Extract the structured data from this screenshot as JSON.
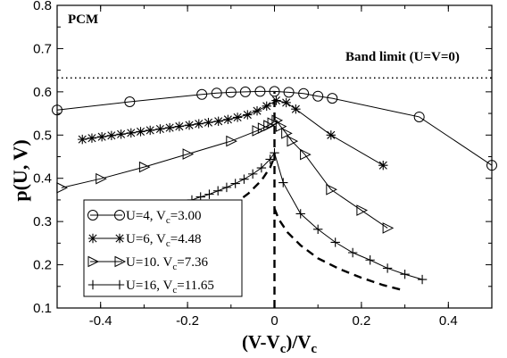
{
  "chart_data": {
    "type": "line",
    "panel_label": "PCM",
    "xlabel": "(V-V",
    "xlabel_sub": "c",
    "xlabel_tail": ")/V",
    "xlabel_sub2": "c",
    "ylabel": "p(U, V)",
    "xlim": [
      -0.5,
      0.5
    ],
    "ylim": [
      0.1,
      0.8
    ],
    "x_ticks": [
      {
        "v": -0.4,
        "label": "-0.4"
      },
      {
        "v": -0.2,
        "label": "-0.2"
      },
      {
        "v": 0.0,
        "label": "0"
      },
      {
        "v": 0.2,
        "label": "0.2"
      },
      {
        "v": 0.4,
        "label": "0.4"
      }
    ],
    "y_ticks": [
      {
        "v": 0.1,
        "label": "0.1"
      },
      {
        "v": 0.2,
        "label": "0.2"
      },
      {
        "v": 0.3,
        "label": "0.3"
      },
      {
        "v": 0.4,
        "label": "0.4"
      },
      {
        "v": 0.5,
        "label": "0.5"
      },
      {
        "v": 0.6,
        "label": "0.6"
      },
      {
        "v": 0.7,
        "label": "0.7"
      },
      {
        "v": 0.8,
        "label": "0.8"
      }
    ],
    "band_limit": {
      "y": 0.632,
      "label": "Band limit (U=V=0)"
    },
    "grid": false,
    "legend_position": "bottom-left",
    "series": [
      {
        "name": "U=4, V",
        "name_sub": "c",
        "name_tail": "=3.00",
        "marker": "circle",
        "x": [
          -0.5,
          -0.333,
          -0.167,
          -0.133,
          -0.1,
          -0.067,
          -0.033,
          0.0,
          0.033,
          0.067,
          0.1,
          0.133,
          0.333,
          0.5
        ],
        "y": [
          0.558,
          0.577,
          0.594,
          0.597,
          0.599,
          0.6,
          0.601,
          0.601,
          0.599,
          0.596,
          0.59,
          0.585,
          0.542,
          0.43
        ]
      },
      {
        "name": "U=6, V",
        "name_sub": "c",
        "name_tail": "=4.48",
        "marker": "star",
        "x": [
          -0.442,
          -0.42,
          -0.397,
          -0.375,
          -0.353,
          -0.33,
          -0.308,
          -0.286,
          -0.263,
          -0.241,
          -0.219,
          -0.196,
          -0.174,
          -0.152,
          -0.129,
          -0.107,
          -0.085,
          -0.062,
          -0.04,
          -0.018,
          0.004,
          0.027,
          0.049,
          0.13,
          0.25
        ],
        "y": [
          0.49,
          0.493,
          0.496,
          0.499,
          0.502,
          0.505,
          0.508,
          0.511,
          0.514,
          0.517,
          0.52,
          0.523,
          0.526,
          0.529,
          0.532,
          0.536,
          0.541,
          0.547,
          0.556,
          0.567,
          0.58,
          0.575,
          0.56,
          0.5,
          0.43
        ]
      },
      {
        "name": "U=10. V",
        "name_sub": "c",
        "name_tail": "=7.36",
        "marker": "triangle-right",
        "x": [
          -0.49,
          -0.4,
          -0.3,
          -0.2,
          -0.1,
          -0.04,
          -0.027,
          -0.014,
          -0.005,
          0.005,
          0.014,
          0.027,
          0.04,
          0.07,
          0.13,
          0.2,
          0.26
        ],
        "y": [
          0.378,
          0.399,
          0.426,
          0.456,
          0.486,
          0.51,
          0.516,
          0.522,
          0.528,
          0.534,
          0.52,
          0.504,
          0.486,
          0.455,
          0.374,
          0.326,
          0.285
        ]
      },
      {
        "name": "U=16, V",
        "name_sub": "c",
        "name_tail": "=11.65",
        "marker": "plus",
        "x": [
          -0.23,
          -0.19,
          -0.17,
          -0.15,
          -0.13,
          -0.11,
          -0.09,
          -0.07,
          -0.05,
          -0.03,
          -0.01,
          0.0,
          0.02,
          0.06,
          0.1,
          0.14,
          0.18,
          0.22,
          0.26,
          0.3,
          0.34
        ],
        "y": [
          0.335,
          0.35,
          0.357,
          0.363,
          0.371,
          0.379,
          0.388,
          0.398,
          0.41,
          0.424,
          0.444,
          0.459,
          0.39,
          0.318,
          0.282,
          0.252,
          0.228,
          0.211,
          0.192,
          0.178,
          0.166
        ]
      }
    ],
    "reference_curves": [
      {
        "style": "dashed",
        "x": [
          -0.2,
          -0.15,
          -0.1,
          -0.06,
          -0.03,
          -0.01,
          0.0
        ],
        "y": [
          0.27,
          0.305,
          0.335,
          0.365,
          0.395,
          0.425,
          0.45
        ]
      },
      {
        "style": "dashed",
        "x": [
          0.0,
          0.01,
          0.03,
          0.06,
          0.1,
          0.15,
          0.2,
          0.25,
          0.3
        ],
        "y": [
          0.33,
          0.305,
          0.275,
          0.245,
          0.215,
          0.19,
          0.17,
          0.153,
          0.14
        ]
      },
      {
        "style": "dashed",
        "x": [
          0.0,
          0.0
        ],
        "y": [
          0.1,
          0.6
        ]
      }
    ]
  }
}
